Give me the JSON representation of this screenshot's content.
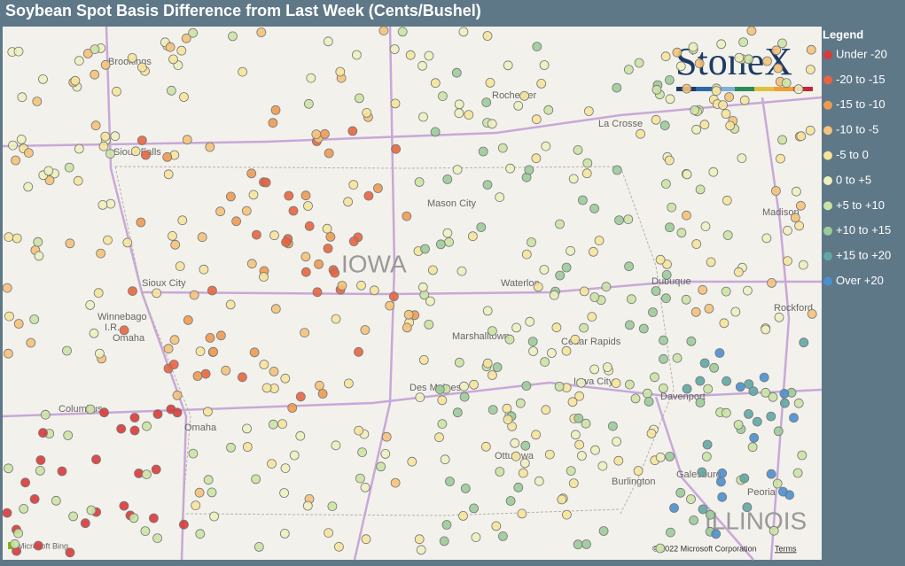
{
  "title": "Soybean Spot Basis Difference from Last Week (Cents/Bushel)",
  "legend": {
    "title": "Legend",
    "items": [
      {
        "label": "Under -20",
        "color": "#d93a3a"
      },
      {
        "label": "-20 to -15",
        "color": "#e8653f"
      },
      {
        "label": "-15 to -10",
        "color": "#ee9a52"
      },
      {
        "label": "-10 to -5",
        "color": "#f4c27a"
      },
      {
        "label": "-5 to 0",
        "color": "#f6e49c"
      },
      {
        "label": "0 to +5",
        "color": "#eef0bf"
      },
      {
        "label": "+5 to +10",
        "color": "#cbe3a5"
      },
      {
        "label": "+10 to +15",
        "color": "#9ccb9a"
      },
      {
        "label": "+15 to +20",
        "color": "#5fa6a4"
      },
      {
        "label": "Over +20",
        "color": "#4a8fd0"
      }
    ]
  },
  "logo": "StoneX",
  "map_labels": [
    "Brookings",
    "Sioux Falls",
    "Rochester",
    "La Crosse",
    "Mason City",
    "Madison",
    "IOWA",
    "Waterloo",
    "Dubuque",
    "Sioux City",
    "Winnebago",
    "I.R.",
    "Omaha",
    "Marshalltown",
    "Cedar Rapids",
    "Rockford",
    "Columbus",
    "Omaha",
    "Des Moines",
    "Iowa City",
    "Davenport",
    "Ottumwa",
    "Burlington",
    "Galesburg",
    "Peoria",
    "ILLINOIS"
  ],
  "attribution": {
    "bing": "Microsoft Bing",
    "copyright": "© 2022 Microsoft Corporation",
    "terms": "Terms"
  }
}
